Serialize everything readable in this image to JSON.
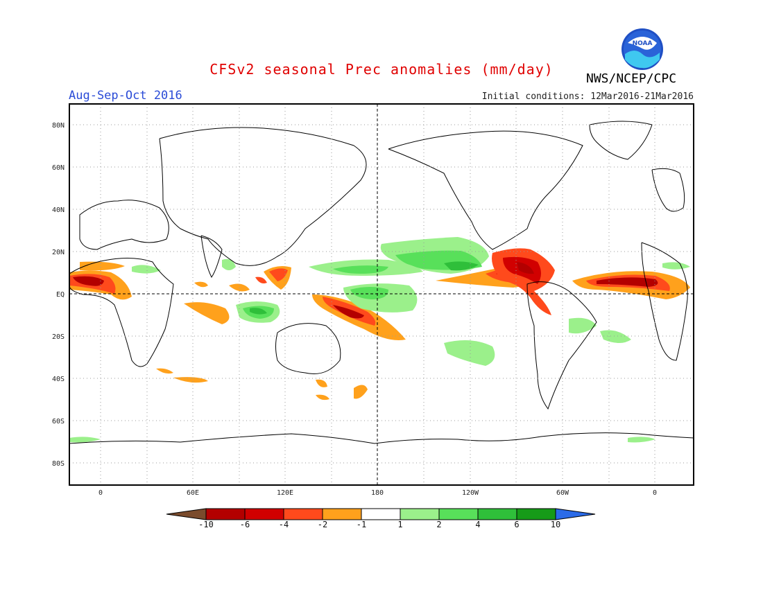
{
  "header": {
    "title": "CFSv2 seasonal Prec anomalies (mm/day)",
    "period": "Aug-Sep-Oct 2016",
    "initial_conditions": "Initial conditions: 12Mar2016-21Mar2016",
    "agency": "NWS/NCEP/CPC",
    "logo_text": "NOAA"
  },
  "map": {
    "projection": "cylindrical equidistant",
    "lon_range": [
      -20,
      380
    ],
    "lat_range": [
      -90,
      90
    ],
    "grid": true,
    "lat_labels": [
      "80N",
      "60N",
      "40N",
      "20N",
      "EQ",
      "20S",
      "40S",
      "60S",
      "80S"
    ],
    "lon_labels": [
      "0",
      "60E",
      "120E",
      "180",
      "120W",
      "60W",
      "0"
    ]
  },
  "colorbar": {
    "ticks": [
      "-10",
      "-6",
      "-4",
      "-2",
      "-1",
      "1",
      "2",
      "4",
      "6",
      "10"
    ],
    "colors": [
      "#7a4b2c",
      "#b30000",
      "#d10000",
      "#ff4a1c",
      "#ffa11c",
      "#ffffff",
      "#9bf08b",
      "#58e05a",
      "#2fbf3a",
      "#169b18",
      "#2b6be8"
    ]
  }
}
